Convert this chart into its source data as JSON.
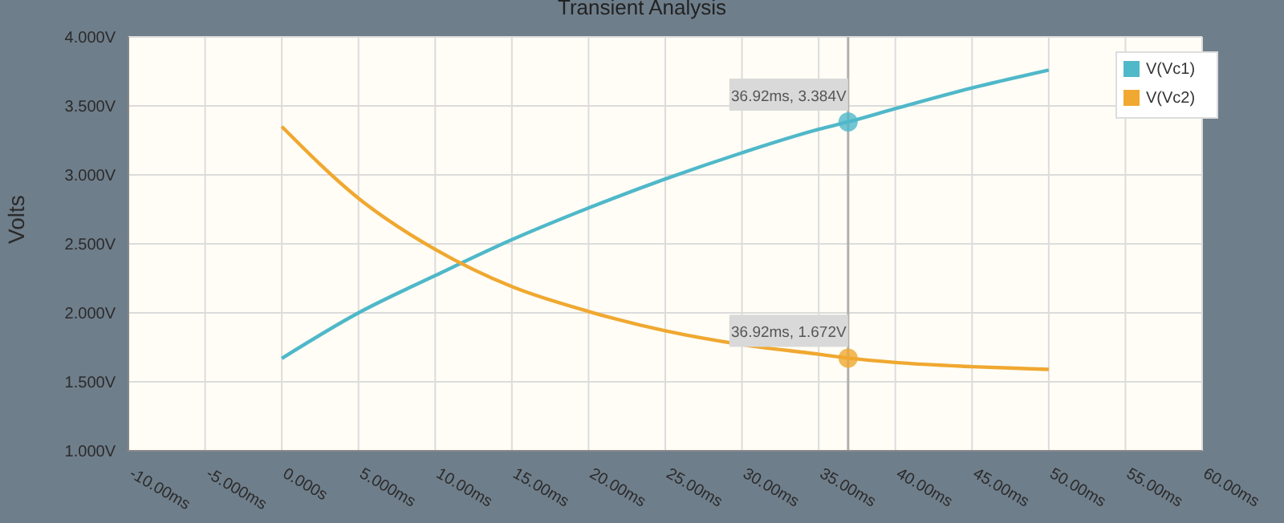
{
  "chart_data": {
    "type": "line",
    "title": "Transient Analysis",
    "ylabel": "Volts",
    "x": [
      0,
      5,
      10,
      15,
      20,
      25,
      30,
      35,
      36.92,
      40,
      45,
      50
    ],
    "series": [
      {
        "name": "V(Vc1)",
        "color": "#4fb8c9",
        "values": [
          1.67,
          2.0,
          2.27,
          2.53,
          2.76,
          2.97,
          3.16,
          3.33,
          3.384,
          3.48,
          3.63,
          3.76
        ]
      },
      {
        "name": "V(Vc2)",
        "color": "#f0a830",
        "values": [
          3.35,
          2.83,
          2.46,
          2.19,
          2.01,
          1.87,
          1.77,
          1.7,
          1.672,
          1.64,
          1.61,
          1.59
        ]
      }
    ],
    "xlim": [
      -10,
      60
    ],
    "xticks": [
      {
        "value": -10,
        "label": "-10.00ms"
      },
      {
        "value": -5,
        "label": "-5.000ms"
      },
      {
        "value": 0,
        "label": "0.000s"
      },
      {
        "value": 5,
        "label": "5.000ms"
      },
      {
        "value": 10,
        "label": "10.00ms"
      },
      {
        "value": 15,
        "label": "15.00ms"
      },
      {
        "value": 20,
        "label": "20.00ms"
      },
      {
        "value": 25,
        "label": "25.00ms"
      },
      {
        "value": 30,
        "label": "30.00ms"
      },
      {
        "value": 35,
        "label": "35.00ms"
      },
      {
        "value": 40,
        "label": "40.00ms"
      },
      {
        "value": 45,
        "label": "45.00ms"
      },
      {
        "value": 50,
        "label": "50.00ms"
      },
      {
        "value": 55,
        "label": "55.00ms"
      },
      {
        "value": 60,
        "label": "60.00ms"
      }
    ],
    "ylim": [
      1,
      4
    ],
    "yticks": [
      {
        "value": 1,
        "label": "1.000V"
      },
      {
        "value": 1.5,
        "label": "1.500V"
      },
      {
        "value": 2,
        "label": "2.000V"
      },
      {
        "value": 2.5,
        "label": "2.500V"
      },
      {
        "value": 3,
        "label": "3.000V"
      },
      {
        "value": 3.5,
        "label": "3.500V"
      },
      {
        "value": 4,
        "label": "4.000V"
      }
    ],
    "ref_lines": [
      {
        "axis": "x",
        "value": 36.92,
        "color": "#b0b0b0"
      }
    ],
    "annotations": [
      {
        "text": "36.92ms, 3.384V",
        "x": 36.92,
        "y": 3.384
      },
      {
        "text": "36.92ms, 1.672V",
        "x": 36.92,
        "y": 1.672
      }
    ],
    "grid": true,
    "legend": "top right",
    "marker": "none",
    "line_style": "solid"
  }
}
